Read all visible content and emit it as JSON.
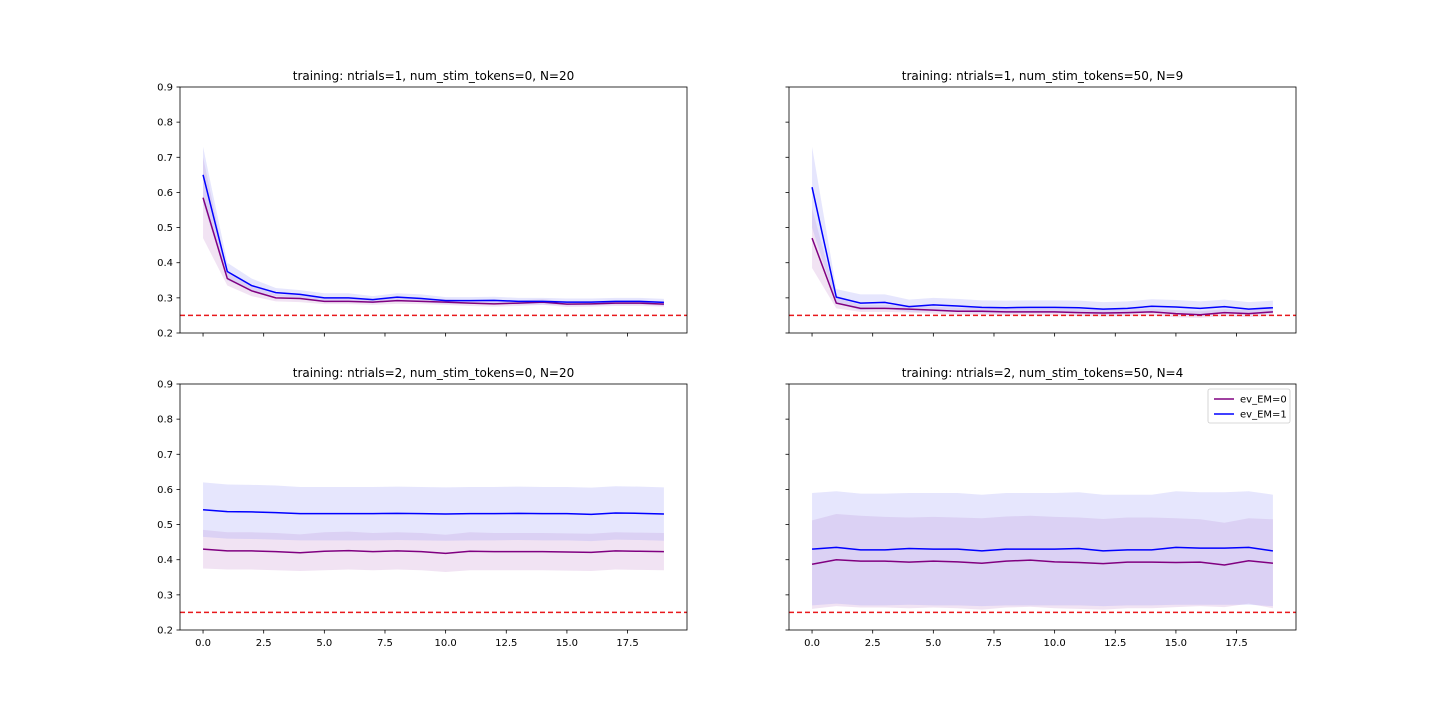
{
  "chart_data": {
    "type": "line",
    "shared": {
      "x": [
        0,
        1,
        2,
        3,
        4,
        5,
        6,
        7,
        8,
        9,
        10,
        11,
        12,
        13,
        14,
        15,
        16,
        17,
        18,
        19
      ],
      "xlim": [
        -0.95,
        19.95
      ],
      "ylim": [
        0.2,
        0.9
      ],
      "xticks": [
        0,
        2.5,
        5,
        7.5,
        10,
        12.5,
        15,
        17.5
      ],
      "xtick_labels": [
        "0.0",
        "2.5",
        "5.0",
        "7.5",
        "10.0",
        "12.5",
        "15.0",
        "17.5"
      ],
      "yticks": [
        0.2,
        0.3,
        0.4,
        0.5,
        0.6,
        0.7,
        0.8,
        0.9
      ],
      "ytick_labels": [
        "0.2",
        "0.3",
        "0.4",
        "0.5",
        "0.6",
        "0.7",
        "0.8",
        "0.9"
      ],
      "reference_line": {
        "y": 0.25,
        "color": "#e8191c",
        "style": "dashed"
      },
      "series_colors": {
        "ev_EM=0": "#800080",
        "ev_EM=1": "#0000ff"
      },
      "band_colors": {
        "ev_EM=0": "#c98fd0",
        "ev_EM=1": "#9a9af7"
      },
      "grid": false,
      "legend": {
        "placement": "top-right",
        "panel": 3,
        "entries": [
          "ev_EM=0",
          "ev_EM=1"
        ]
      }
    },
    "panels": [
      {
        "title": "training: ntrials=1, num_stim_tokens=0, N=20",
        "series": [
          {
            "name": "ev_EM=0",
            "values": [
              0.585,
              0.355,
              0.32,
              0.3,
              0.298,
              0.29,
              0.29,
              0.288,
              0.292,
              0.29,
              0.288,
              0.285,
              0.283,
              0.285,
              0.288,
              0.282,
              0.283,
              0.285,
              0.285,
              0.282
            ],
            "lower": [
              0.47,
              0.335,
              0.305,
              0.29,
              0.288,
              0.282,
              0.282,
              0.28,
              0.283,
              0.282,
              0.28,
              0.277,
              0.275,
              0.277,
              0.28,
              0.274,
              0.275,
              0.277,
              0.277,
              0.275
            ],
            "upper": [
              0.7,
              0.375,
              0.335,
              0.31,
              0.308,
              0.298,
              0.298,
              0.296,
              0.301,
              0.298,
              0.296,
              0.293,
              0.291,
              0.293,
              0.296,
              0.29,
              0.291,
              0.293,
              0.293,
              0.29
            ]
          },
          {
            "name": "ev_EM=1",
            "values": [
              0.65,
              0.375,
              0.335,
              0.315,
              0.31,
              0.3,
              0.3,
              0.295,
              0.302,
              0.298,
              0.292,
              0.292,
              0.293,
              0.29,
              0.29,
              0.288,
              0.288,
              0.29,
              0.29,
              0.287
            ],
            "lower": [
              0.57,
              0.35,
              0.32,
              0.305,
              0.3,
              0.29,
              0.29,
              0.285,
              0.292,
              0.288,
              0.283,
              0.283,
              0.283,
              0.281,
              0.281,
              0.279,
              0.279,
              0.281,
              0.281,
              0.278
            ],
            "upper": [
              0.73,
              0.4,
              0.355,
              0.328,
              0.322,
              0.313,
              0.313,
              0.305,
              0.313,
              0.31,
              0.302,
              0.302,
              0.303,
              0.3,
              0.3,
              0.298,
              0.298,
              0.3,
              0.3,
              0.297
            ]
          }
        ],
        "show_xtick_labels": false,
        "show_ytick_labels": true
      },
      {
        "title": "training: ntrials=1, num_stim_tokens=50, N=9",
        "series": [
          {
            "name": "ev_EM=0",
            "values": [
              0.47,
              0.285,
              0.27,
              0.27,
              0.268,
              0.265,
              0.262,
              0.262,
              0.26,
              0.26,
              0.26,
              0.258,
              0.257,
              0.258,
              0.26,
              0.255,
              0.252,
              0.258,
              0.255,
              0.26
            ],
            "lower": [
              0.385,
              0.27,
              0.26,
              0.26,
              0.258,
              0.255,
              0.252,
              0.252,
              0.25,
              0.25,
              0.25,
              0.248,
              0.247,
              0.248,
              0.25,
              0.245,
              0.243,
              0.248,
              0.245,
              0.25
            ],
            "upper": [
              0.555,
              0.3,
              0.28,
              0.28,
              0.278,
              0.275,
              0.272,
              0.272,
              0.27,
              0.27,
              0.27,
              0.268,
              0.267,
              0.268,
              0.27,
              0.265,
              0.262,
              0.268,
              0.265,
              0.27
            ]
          },
          {
            "name": "ev_EM=1",
            "values": [
              0.615,
              0.302,
              0.285,
              0.287,
              0.275,
              0.28,
              0.277,
              0.273,
              0.272,
              0.273,
              0.273,
              0.272,
              0.268,
              0.27,
              0.276,
              0.274,
              0.27,
              0.275,
              0.268,
              0.272
            ],
            "lower": [
              0.5,
              0.285,
              0.265,
              0.27,
              0.26,
              0.262,
              0.26,
              0.257,
              0.256,
              0.257,
              0.257,
              0.256,
              0.252,
              0.254,
              0.26,
              0.258,
              0.254,
              0.259,
              0.252,
              0.256
            ],
            "upper": [
              0.73,
              0.325,
              0.31,
              0.31,
              0.295,
              0.3,
              0.297,
              0.293,
              0.292,
              0.293,
              0.293,
              0.292,
              0.288,
              0.29,
              0.296,
              0.294,
              0.29,
              0.295,
              0.288,
              0.292
            ]
          }
        ],
        "show_xtick_labels": false,
        "show_ytick_labels": false
      },
      {
        "title": "training: ntrials=2, num_stim_tokens=0, N=20",
        "series": [
          {
            "name": "ev_EM=0",
            "values": [
              0.43,
              0.425,
              0.425,
              0.423,
              0.42,
              0.424,
              0.426,
              0.423,
              0.425,
              0.423,
              0.418,
              0.424,
              0.423,
              0.423,
              0.423,
              0.422,
              0.421,
              0.425,
              0.424,
              0.423
            ],
            "lower": [
              0.375,
              0.372,
              0.372,
              0.37,
              0.368,
              0.37,
              0.372,
              0.37,
              0.372,
              0.37,
              0.365,
              0.37,
              0.37,
              0.37,
              0.37,
              0.369,
              0.368,
              0.372,
              0.371,
              0.37
            ],
            "upper": [
              0.485,
              0.478,
              0.478,
              0.476,
              0.472,
              0.478,
              0.48,
              0.476,
              0.478,
              0.476,
              0.471,
              0.478,
              0.476,
              0.476,
              0.476,
              0.475,
              0.474,
              0.478,
              0.477,
              0.476
            ]
          },
          {
            "name": "ev_EM=1",
            "values": [
              0.542,
              0.537,
              0.536,
              0.534,
              0.531,
              0.531,
              0.531,
              0.531,
              0.532,
              0.531,
              0.53,
              0.531,
              0.531,
              0.532,
              0.531,
              0.531,
              0.529,
              0.533,
              0.532,
              0.53
            ],
            "lower": [
              0.465,
              0.46,
              0.459,
              0.457,
              0.455,
              0.455,
              0.455,
              0.455,
              0.456,
              0.455,
              0.454,
              0.455,
              0.455,
              0.456,
              0.455,
              0.455,
              0.453,
              0.457,
              0.456,
              0.454
            ],
            "upper": [
              0.62,
              0.614,
              0.613,
              0.611,
              0.607,
              0.607,
              0.607,
              0.607,
              0.608,
              0.607,
              0.606,
              0.607,
              0.607,
              0.608,
              0.607,
              0.607,
              0.605,
              0.609,
              0.608,
              0.606
            ]
          }
        ],
        "show_xtick_labels": true,
        "show_ytick_labels": true
      },
      {
        "title": "training: ntrials=2, num_stim_tokens=50, N=4",
        "series": [
          {
            "name": "ev_EM=0",
            "values": [
              0.387,
              0.4,
              0.396,
              0.396,
              0.393,
              0.396,
              0.394,
              0.39,
              0.396,
              0.399,
              0.394,
              0.392,
              0.389,
              0.393,
              0.393,
              0.392,
              0.393,
              0.385,
              0.397,
              0.39
            ],
            "lower": [
              0.26,
              0.268,
              0.264,
              0.264,
              0.262,
              0.264,
              0.262,
              0.258,
              0.264,
              0.266,
              0.262,
              0.26,
              0.258,
              0.262,
              0.262,
              0.265,
              0.268,
              0.265,
              0.275,
              0.262
            ],
            "upper": [
              0.512,
              0.53,
              0.525,
              0.522,
              0.52,
              0.522,
              0.52,
              0.518,
              0.523,
              0.525,
              0.522,
              0.52,
              0.516,
              0.52,
              0.52,
              0.518,
              0.515,
              0.505,
              0.518,
              0.515
            ]
          },
          {
            "name": "ev_EM=1",
            "values": [
              0.43,
              0.435,
              0.428,
              0.428,
              0.432,
              0.43,
              0.43,
              0.425,
              0.43,
              0.43,
              0.43,
              0.432,
              0.425,
              0.428,
              0.428,
              0.435,
              0.433,
              0.433,
              0.435,
              0.425
            ],
            "lower": [
              0.27,
              0.275,
              0.27,
              0.27,
              0.272,
              0.27,
              0.27,
              0.268,
              0.27,
              0.27,
              0.27,
              0.27,
              0.268,
              0.27,
              0.27,
              0.272,
              0.272,
              0.272,
              0.272,
              0.268
            ],
            "upper": [
              0.59,
              0.595,
              0.588,
              0.588,
              0.59,
              0.59,
              0.59,
              0.585,
              0.59,
              0.59,
              0.59,
              0.592,
              0.585,
              0.585,
              0.585,
              0.595,
              0.592,
              0.592,
              0.595,
              0.585
            ]
          }
        ],
        "show_xtick_labels": true,
        "show_ytick_labels": false
      }
    ]
  }
}
